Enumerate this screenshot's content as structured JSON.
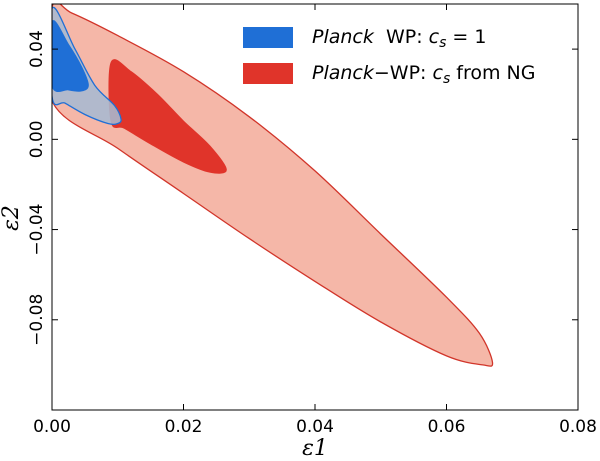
{
  "chart_data": {
    "type": "contour",
    "xlabel": "ε1",
    "ylabel": "ε2",
    "xlim": [
      0.0,
      0.08
    ],
    "ylim": [
      -0.12,
      0.06
    ],
    "xticks": [
      0.0,
      0.02,
      0.04,
      0.06,
      0.08
    ],
    "xtick_labels": [
      "0.00",
      "0.02",
      "0.04",
      "0.06",
      "0.08"
    ],
    "yticks": [
      0.04,
      0.0,
      -0.04,
      -0.08
    ],
    "ytick_labels": [
      "0.04",
      "0.00",
      "−0.04",
      "−0.08"
    ],
    "legend_position": "top-right",
    "series": [
      {
        "name": "Planck WP: c_s = 1",
        "legend": {
          "italic": "Planck",
          "text": "  WP: ",
          "math": "c",
          "sub": "s",
          "rest": " = 1"
        },
        "color": "#1f6fd6",
        "contours": [
          {
            "level": "95%",
            "fill": "#a7bad0",
            "stroke": "#1f6fd6",
            "points": [
              [
                0.0,
                0.058
              ],
              [
                0.0035,
                0.04
              ],
              [
                0.0065,
                0.024
              ],
              [
                0.0095,
                0.015
              ],
              [
                0.0105,
                0.009
              ],
              [
                0.01,
                0.007
              ],
              [
                0.0085,
                0.007
              ],
              [
                0.005,
                0.011
              ],
              [
                0.002,
                0.016
              ],
              [
                0.0,
                0.019
              ]
            ]
          },
          {
            "level": "68%",
            "fill": "#1f6fd6",
            "stroke": "#1f6fd6",
            "points": [
              [
                0.0,
                0.052
              ],
              [
                0.0025,
                0.042
              ],
              [
                0.0045,
                0.032
              ],
              [
                0.0055,
                0.024
              ],
              [
                0.0045,
                0.0215
              ],
              [
                0.0025,
                0.022
              ],
              [
                0.0,
                0.024
              ]
            ]
          }
        ]
      },
      {
        "name": "Planck−WP: c_s from NG",
        "legend": {
          "italic": "Planck",
          "text": "−WP: ",
          "math": "c",
          "sub": "s",
          "rest": " from NG"
        },
        "color": "#e0342a",
        "contours": [
          {
            "level": "95%",
            "fill": "#f5b7a8",
            "stroke": "#d1352a",
            "points": [
              [
                0.0,
                0.0585
              ],
              [
                0.003,
                0.056
              ],
              [
                0.01,
                0.046
              ],
              [
                0.02,
                0.03
              ],
              [
                0.03,
                0.01
              ],
              [
                0.04,
                -0.014
              ],
              [
                0.05,
                -0.042
              ],
              [
                0.06,
                -0.07
              ],
              [
                0.065,
                -0.086
              ],
              [
                0.067,
                -0.099
              ],
              [
                0.0655,
                -0.1
              ],
              [
                0.06,
                -0.096
              ],
              [
                0.05,
                -0.081
              ],
              [
                0.04,
                -0.063
              ],
              [
                0.03,
                -0.044
              ],
              [
                0.02,
                -0.024
              ],
              [
                0.01,
                -0.004
              ],
              [
                0.0,
                0.017
              ]
            ]
          },
          {
            "level": "68%",
            "fill": "#e0342a",
            "stroke": "#e0342a",
            "points": [
              [
                0.009,
                0.034
              ],
              [
                0.012,
                0.03
              ],
              [
                0.016,
                0.02
              ],
              [
                0.02,
                0.008
              ],
              [
                0.024,
                -0.003
              ],
              [
                0.0265,
                -0.0135
              ],
              [
                0.024,
                -0.0145
              ],
              [
                0.02,
                -0.01
              ],
              [
                0.015,
                -0.002
              ],
              [
                0.011,
                0.005
              ],
              [
                0.009,
                0.008
              ]
            ]
          }
        ]
      }
    ]
  }
}
